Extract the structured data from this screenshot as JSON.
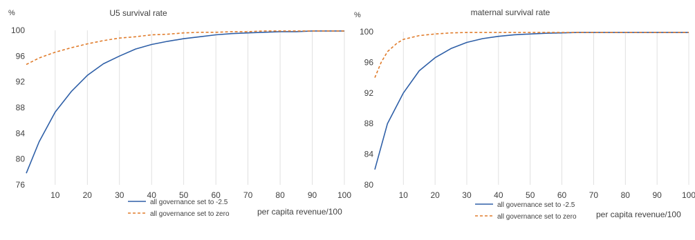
{
  "chart_data": [
    {
      "type": "line",
      "title": "U5 survival rate",
      "ylabel": "%",
      "xlabel": "",
      "xlim": [
        1,
        100
      ],
      "ylim": [
        76,
        100
      ],
      "xticks": [
        10,
        20,
        30,
        40,
        50,
        60,
        70,
        80,
        90,
        100
      ],
      "yticks": [
        76,
        80,
        84,
        88,
        92,
        96,
        100
      ],
      "grid": "vertical",
      "legend": "bottom",
      "series": [
        {
          "name": "all governance set to -2.5",
          "color": "#2e5fa7",
          "dash": "solid",
          "x": [
            1,
            5,
            10,
            15,
            20,
            25,
            30,
            35,
            40,
            45,
            50,
            55,
            60,
            65,
            70,
            75,
            80,
            85,
            90,
            95,
            100
          ],
          "values": [
            77.8,
            82.7,
            87.3,
            90.5,
            93.0,
            94.8,
            96.0,
            97.1,
            97.8,
            98.3,
            98.7,
            99.0,
            99.3,
            99.5,
            99.6,
            99.7,
            99.8,
            99.8,
            99.9,
            99.9,
            99.9
          ]
        },
        {
          "name": "all governance set to zero",
          "color": "#e07b2a",
          "dash": "dashed",
          "x": [
            1,
            5,
            10,
            15,
            20,
            25,
            30,
            35,
            40,
            45,
            50,
            55,
            60,
            65,
            70,
            75,
            80,
            85,
            90,
            95,
            100
          ],
          "values": [
            94.7,
            95.7,
            96.6,
            97.3,
            97.9,
            98.4,
            98.8,
            99.0,
            99.3,
            99.4,
            99.6,
            99.7,
            99.7,
            99.8,
            99.8,
            99.9,
            99.9,
            99.9,
            99.9,
            99.9,
            99.9
          ]
        }
      ]
    },
    {
      "type": "line",
      "title": "maternal survival rate",
      "ylabel": "%",
      "xlabel": "per capita revenue/100",
      "xlim": [
        1,
        100
      ],
      "ylim": [
        80,
        100
      ],
      "xticks": [
        10,
        20,
        30,
        40,
        50,
        60,
        70,
        80,
        90,
        100
      ],
      "yticks": [
        80,
        84,
        88,
        92,
        96,
        100
      ],
      "grid": "vertical",
      "legend": "bottom",
      "series": [
        {
          "name": "all governance set to -2.5",
          "color": "#2e5fa7",
          "dash": "solid",
          "x": [
            1,
            5,
            10,
            15,
            20,
            25,
            30,
            35,
            40,
            45,
            50,
            55,
            60,
            65,
            70,
            80,
            90,
            100
          ],
          "values": [
            82.0,
            88.0,
            92.0,
            94.9,
            96.6,
            97.8,
            98.6,
            99.1,
            99.4,
            99.6,
            99.7,
            99.8,
            99.85,
            99.9,
            99.9,
            99.9,
            99.9,
            99.9
          ]
        },
        {
          "name": "all governance set to zero",
          "color": "#e07b2a",
          "dash": "dashed",
          "x": [
            1,
            3,
            5,
            8,
            10,
            15,
            20,
            25,
            30,
            40,
            50,
            60,
            70,
            80,
            90,
            100
          ],
          "values": [
            94.0,
            96.0,
            97.4,
            98.5,
            99.0,
            99.5,
            99.7,
            99.85,
            99.9,
            99.9,
            99.9,
            99.9,
            99.9,
            99.9,
            99.9,
            99.9
          ]
        }
      ]
    }
  ],
  "x_axis_caption": "per capita revenue/100"
}
